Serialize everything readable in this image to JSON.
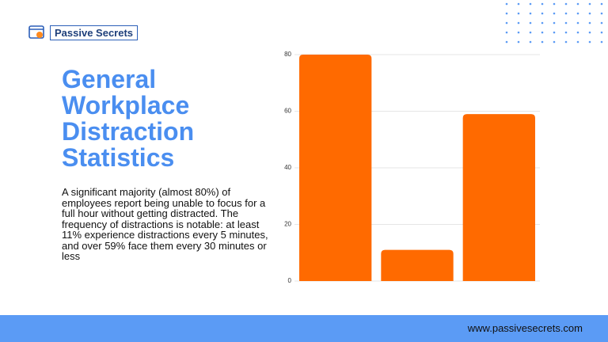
{
  "logo": {
    "text": "Passive Secrets"
  },
  "heading": {
    "title": "General Workplace Distraction Statistics",
    "body": "A significant majority (almost 80%) of employees report being unable to focus for a full hour without getting distracted. The frequency of distractions is notable: at least 11% experience distractions every 5 minutes, and over 59% face them every 30 minutes or less"
  },
  "chart_data": {
    "type": "bar",
    "categories": [
      null,
      null,
      null
    ],
    "values": [
      80,
      11,
      59
    ],
    "color": "#ff6a00",
    "ylim": [
      0,
      80
    ],
    "yticks": [
      0,
      20,
      40,
      60,
      80
    ],
    "grid": true
  },
  "footer": {
    "url": "www.passivesecrets.com"
  }
}
